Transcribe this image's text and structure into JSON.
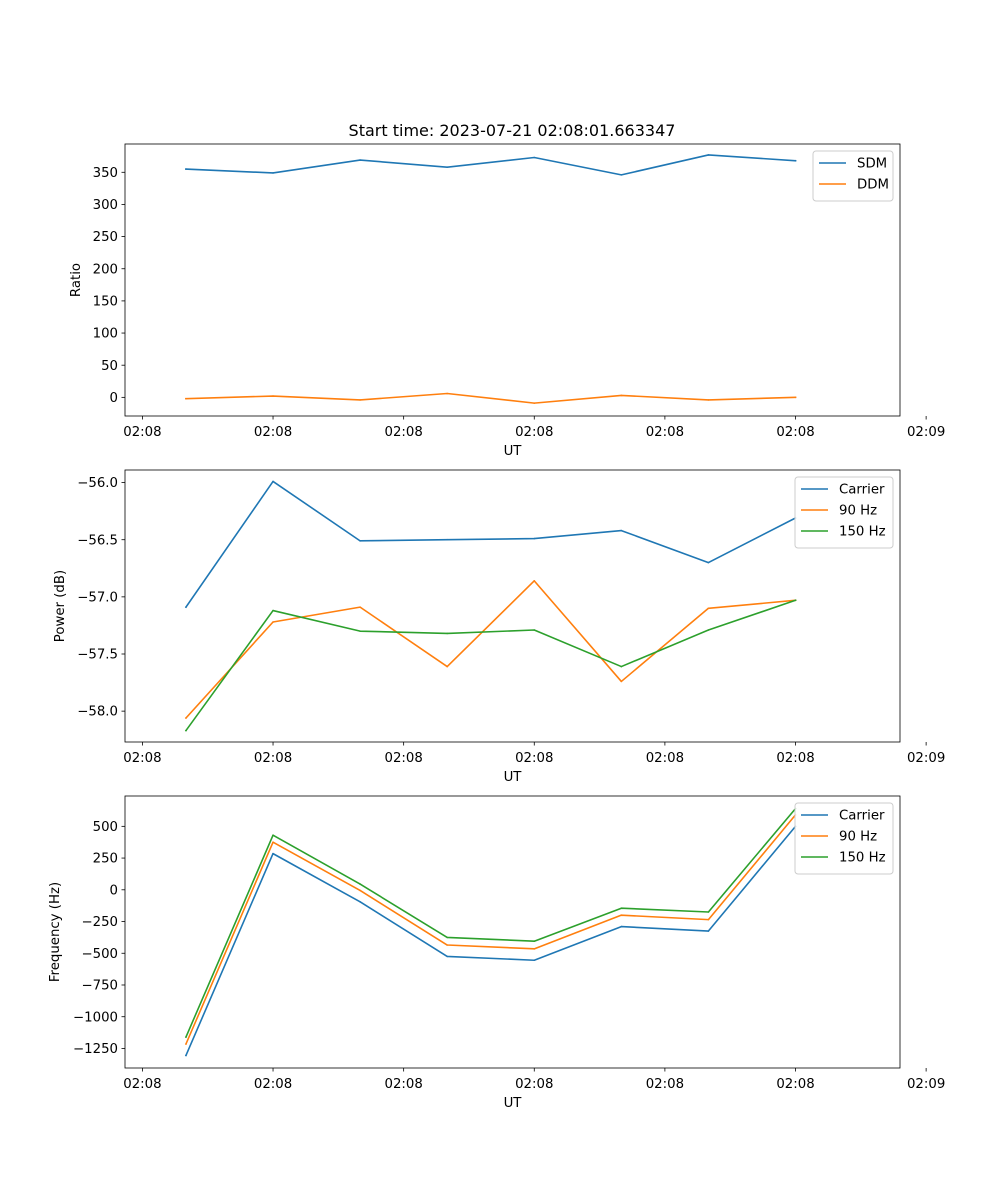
{
  "chart_data": [
    {
      "type": "line",
      "title": "Start time: 2023-07-21 02:08:01.663347",
      "xlabel": "UT",
      "ylabel": "Ratio",
      "x": [
        1,
        2,
        3,
        4,
        5,
        6,
        7,
        8
      ],
      "xlim": [
        0.3,
        9.2
      ],
      "xticks": [
        0.5,
        2,
        3.5,
        5,
        6.5,
        8,
        9.5
      ],
      "xtick_labels": [
        "02:08",
        "02:08",
        "02:08",
        "02:08",
        "02:08",
        "02:08",
        "02:09"
      ],
      "ylim": [
        -29,
        394
      ],
      "yticks": [
        0,
        50,
        100,
        150,
        200,
        250,
        300,
        350
      ],
      "ytick_labels": [
        "0",
        "50",
        "100",
        "150",
        "200",
        "250",
        "300",
        "350"
      ],
      "legend_position": "top-right",
      "series": [
        {
          "name": "SDM",
          "color": "#1f77b4",
          "values": [
            355,
            349,
            369,
            358,
            373,
            346,
            377,
            368
          ]
        },
        {
          "name": "DDM",
          "color": "#ff7f0e",
          "values": [
            -2,
            2,
            -4,
            6,
            -9,
            3,
            -4,
            0
          ]
        }
      ]
    },
    {
      "type": "line",
      "title": "",
      "xlabel": "UT",
      "ylabel": "Power (dB)",
      "x": [
        1,
        2,
        3,
        4,
        5,
        6,
        7,
        8
      ],
      "xlim": [
        0.3,
        9.2
      ],
      "xticks": [
        0.5,
        2,
        3.5,
        5,
        6.5,
        8,
        9.5
      ],
      "xtick_labels": [
        "02:08",
        "02:08",
        "02:08",
        "02:08",
        "02:08",
        "02:08",
        "02:09"
      ],
      "ylim": [
        -58.27,
        -55.89
      ],
      "yticks": [
        -58.0,
        -57.5,
        -57.0,
        -56.5,
        -56.0
      ],
      "ytick_labels": [
        "−58.0",
        "−57.5",
        "−57.0",
        "−56.5",
        "−56.0"
      ],
      "legend_position": "top-right",
      "series": [
        {
          "name": "Carrier",
          "color": "#1f77b4",
          "values": [
            -57.09,
            -55.99,
            -56.51,
            -56.5,
            -56.49,
            -56.42,
            -56.7,
            -56.31
          ]
        },
        {
          "name": "90 Hz",
          "color": "#ff7f0e",
          "values": [
            -58.06,
            -57.22,
            -57.09,
            -57.61,
            -56.86,
            -57.74,
            -57.1,
            -57.03
          ]
        },
        {
          "name": "150 Hz",
          "color": "#2ca02c",
          "values": [
            -58.17,
            -57.12,
            -57.3,
            -57.32,
            -57.29,
            -57.61,
            -57.29,
            -57.03
          ]
        }
      ]
    },
    {
      "type": "line",
      "title": "",
      "xlabel": "UT",
      "ylabel": "Frequency (Hz)",
      "x": [
        1,
        2,
        3,
        4,
        5,
        6,
        7,
        8
      ],
      "xlim": [
        0.3,
        9.2
      ],
      "xticks": [
        0.5,
        2,
        3.5,
        5,
        6.5,
        8,
        9.5
      ],
      "xtick_labels": [
        "02:08",
        "02:08",
        "02:08",
        "02:08",
        "02:08",
        "02:08",
        "02:09"
      ],
      "ylim": [
        -1404,
        739
      ],
      "yticks": [
        -1250,
        -1000,
        -750,
        -500,
        -250,
        0,
        250,
        500
      ],
      "ytick_labels": [
        "−1250",
        "−1000",
        "−750",
        "−500",
        "−250",
        "0",
        "250",
        "500"
      ],
      "legend_position": "top-right",
      "series": [
        {
          "name": "Carrier",
          "color": "#1f77b4",
          "values": [
            -1305,
            285,
            -95,
            -525,
            -555,
            -290,
            -325,
            500
          ]
        },
        {
          "name": "90 Hz",
          "color": "#ff7f0e",
          "values": [
            -1215,
            375,
            -5,
            -435,
            -465,
            -200,
            -235,
            590
          ]
        },
        {
          "name": "150 Hz",
          "color": "#2ca02c",
          "values": [
            -1160,
            430,
            45,
            -375,
            -405,
            -145,
            -175,
            640
          ]
        }
      ]
    }
  ]
}
